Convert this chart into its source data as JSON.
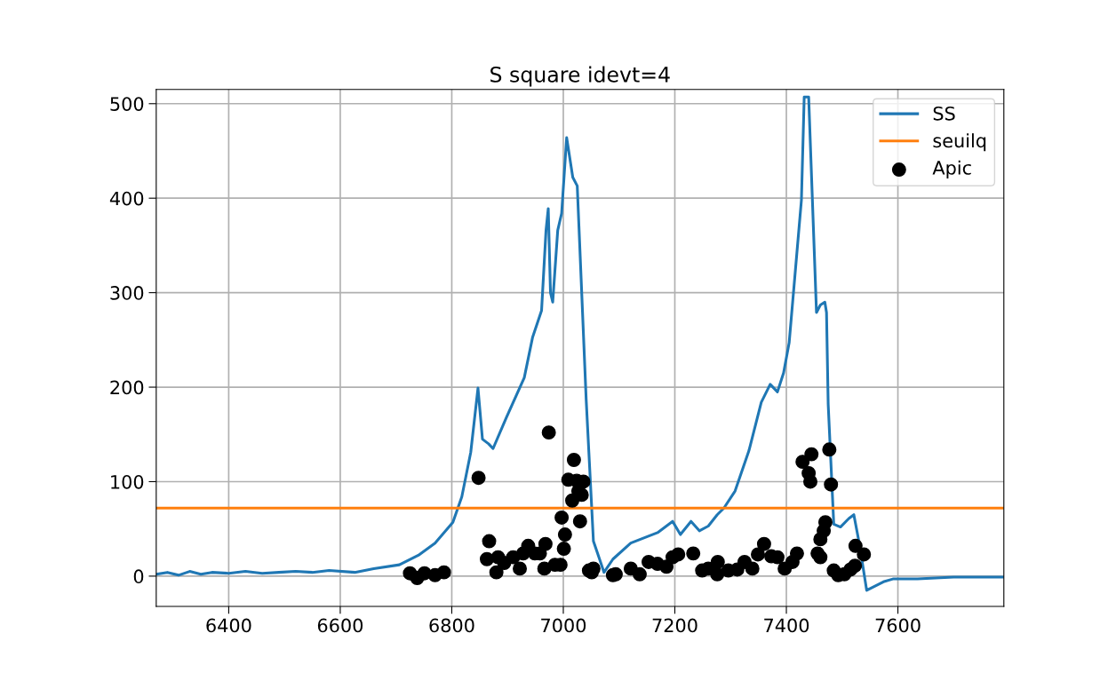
{
  "chart_data": {
    "type": "line",
    "title": "S square idevt=4",
    "xlim": [
      6270,
      7790
    ],
    "ylim": [
      -32,
      515
    ],
    "xticks": [
      6400,
      6600,
      6800,
      7000,
      7200,
      7400,
      7600
    ],
    "yticks": [
      0,
      100,
      200,
      300,
      400,
      500
    ],
    "grid": true,
    "legend": "top right",
    "series": [
      {
        "name": "SS",
        "color": "#1f77b4",
        "x": [
          6270,
          6290,
          6310,
          6330,
          6350,
          6370,
          6400,
          6430,
          6460,
          6490,
          6520,
          6550,
          6580,
          6626,
          6660,
          6706,
          6740,
          6770,
          6802,
          6818,
          6834,
          6847,
          6855,
          6866,
          6874,
          6898,
          6930,
          6945,
          6961,
          6969,
          6973,
          6977,
          6981,
          6990,
          6997,
          7006,
          7017,
          7025,
          7041,
          7054,
          7065,
          7073,
          7089,
          7121,
          7169,
          7196,
          7210,
          7229,
          7244,
          7260,
          7276,
          7288,
          7308,
          7333,
          7355,
          7371,
          7384,
          7395,
          7405,
          7427,
          7432,
          7440,
          7454,
          7461,
          7469,
          7472,
          7475,
          7485,
          7497,
          7512,
          7521,
          7531,
          7544,
          7574,
          7591,
          7635,
          7700,
          7788
        ],
        "values": [
          2,
          4,
          1,
          5,
          2,
          4,
          3,
          5,
          3,
          4,
          5,
          4,
          6,
          4,
          8,
          12,
          22,
          35,
          57,
          84,
          131,
          199,
          145,
          140,
          135,
          168,
          210,
          253,
          281,
          366,
          389,
          300,
          290,
          366,
          384,
          464,
          422,
          413,
          187,
          37,
          18,
          4,
          18,
          35,
          46,
          58,
          44,
          58,
          48,
          53,
          65,
          72,
          90,
          133,
          184,
          203,
          195,
          215,
          247,
          398,
          507,
          507,
          279,
          287,
          290,
          279,
          182,
          55,
          52,
          61,
          65,
          34,
          -15,
          -6,
          -3,
          -3,
          -1,
          -1
        ]
      },
      {
        "name": "seuilq",
        "color": "#ff7f0e",
        "x": [
          6270,
          7790
        ],
        "values": [
          72,
          72
        ]
      },
      {
        "name": "Apic",
        "type": "scatter",
        "color": "#000000",
        "marker": "circle",
        "x": [
          6725,
          6738,
          6751,
          6770,
          6786,
          6848,
          6867,
          6863,
          6880,
          6883,
          6894,
          6910,
          6922,
          6928,
          6937,
          6949,
          6958,
          6966,
          6968,
          6974,
          6985,
          6995,
          6997,
          7003,
          7001,
          7019,
          7009,
          7024,
          7036,
          7027,
          7033,
          7016,
          7030,
          7046,
          7051,
          7054,
          7089,
          7094,
          7121,
          7137,
          7153,
          7169,
          7185,
          7196,
          7206,
          7233,
          7249,
          7260,
          7276,
          7277,
          7296,
          7312,
          7325,
          7339,
          7349,
          7360,
          7373,
          7384,
          7397,
          7411,
          7419,
          7429,
          7445,
          7440,
          7443,
          7477,
          7480,
          7456,
          7461,
          7461,
          7467,
          7470,
          7485,
          7493,
          7504,
          7515,
          7523,
          7524,
          7539
        ],
        "values": [
          3,
          -2,
          3,
          1,
          4,
          104,
          37,
          18,
          4,
          20,
          14,
          20,
          8,
          24,
          32,
          24,
          24,
          8,
          34,
          152,
          12,
          12,
          62,
          44,
          29,
          123,
          102,
          101,
          100,
          90,
          86,
          80,
          58,
          6,
          4,
          8,
          1,
          2,
          8,
          2,
          15,
          13,
          10,
          20,
          23,
          24,
          6,
          8,
          2,
          15,
          6,
          7,
          15,
          8,
          23,
          34,
          21,
          20,
          8,
          15,
          24,
          121,
          129,
          109,
          100,
          134,
          97,
          24,
          20,
          39,
          48,
          57,
          6,
          1,
          2,
          7,
          11,
          32,
          23
        ]
      }
    ]
  }
}
